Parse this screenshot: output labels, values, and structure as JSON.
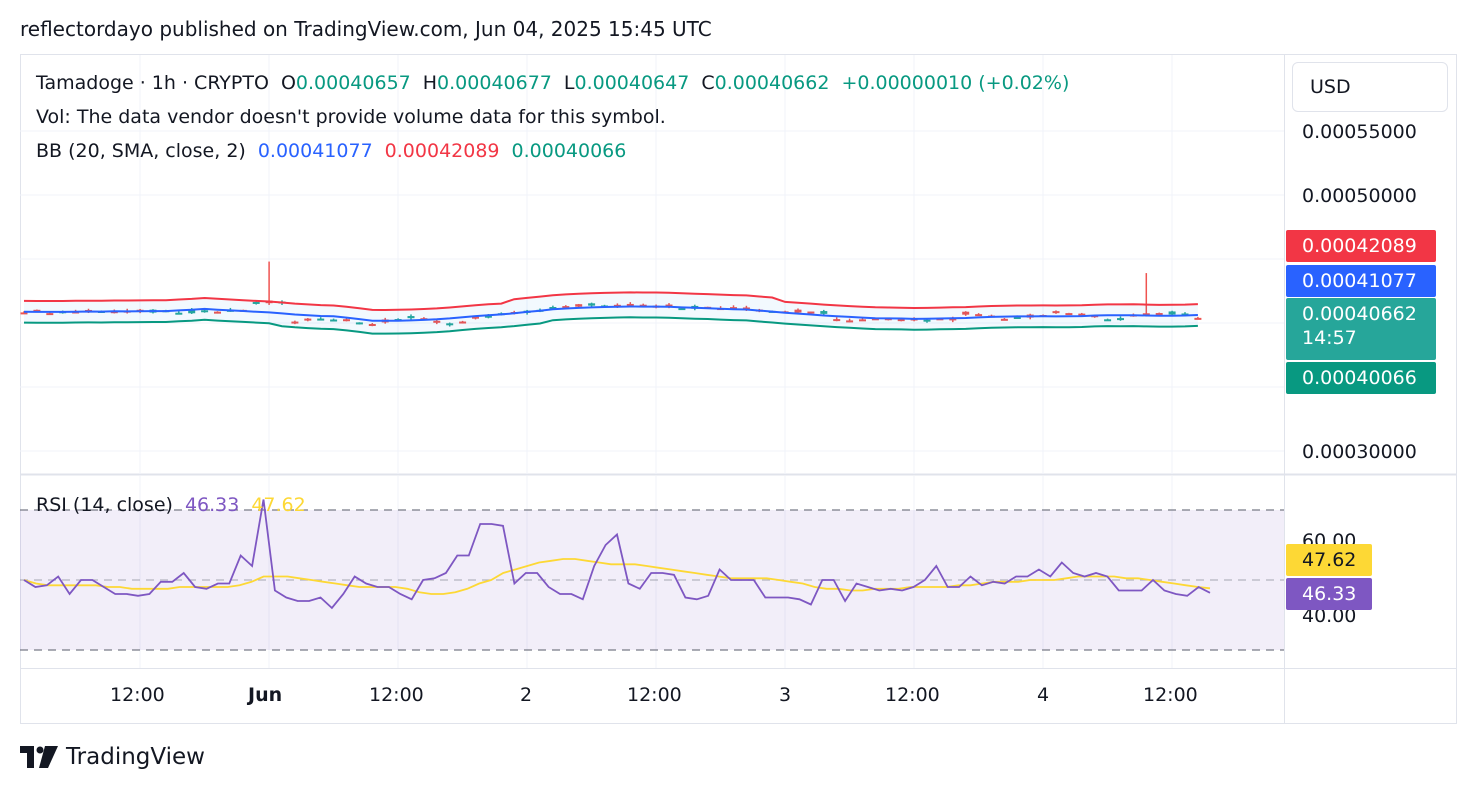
{
  "header": {
    "text": "reflectordayo published on TradingView.com, Jun 04, 2025 15:45 UTC"
  },
  "symbol": {
    "title": "Tamadoge · 1h · CRYPTO",
    "open_label": "O",
    "open": "0.00040657",
    "high_label": "H",
    "high": "0.00040677",
    "low_label": "L",
    "low": "0.00040647",
    "close_label": "C",
    "close": "0.00040662",
    "change": "+0.00000010 (+0.02%)",
    "volume_note": "Vol: The data vendor doesn't provide volume data for this symbol."
  },
  "bb": {
    "label": "BB (20, SMA, close, 2)",
    "basis": "0.00041077",
    "upper": "0.00042089",
    "lower": "0.00040066"
  },
  "rsi": {
    "label": "RSI (14, close)",
    "value": "46.33",
    "ma": "47.62"
  },
  "currency": "USD",
  "price_axis": {
    "ticks": [
      "0.00055000",
      "0.00050000",
      "0.00030000"
    ],
    "rsi_ticks": [
      "60.00",
      "40.00"
    ]
  },
  "price_tags": {
    "upper": "0.00042089",
    "basis": "0.00041077",
    "last": "0.00040662",
    "countdown": "14:57",
    "lower": "0.00040066",
    "rsi_ma": "47.62",
    "rsi": "46.33"
  },
  "time_axis": [
    "12:00",
    "Jun",
    "2",
    "12:00",
    "3",
    "12:00",
    "4",
    "12:00",
    "12:00"
  ],
  "colors": {
    "up": "#26a69a",
    "down": "#ef5350",
    "bb_upper": "#f23645",
    "bb_basis": "#2962ff",
    "bb_lower": "#089981",
    "rsi": "#7e57c2",
    "rsi_ma": "#fdd835",
    "grid": "#f0f3fa"
  },
  "footer": {
    "brand": "TradingView"
  },
  "chart_data": [
    {
      "type": "candlestick",
      "title": "Tamadoge · 1h · CRYPTO",
      "ylim": [
        0.00027,
        0.00058
      ],
      "yticks": [
        0.00055,
        0.0005,
        0.0003
      ],
      "x_labels": [
        "12:00",
        "Jun",
        "12:00",
        "2",
        "12:00",
        "3",
        "12:00",
        "4",
        "12:00"
      ],
      "bars": 92,
      "last_close": 0.00040662,
      "bollinger": {
        "basis": 0.00041077,
        "upper": 0.00042089,
        "lower": 0.00040066
      },
      "spikes": [
        {
          "bar": 19,
          "high": 0.000448
        },
        {
          "bar": 87,
          "high": 0.000439
        }
      ]
    },
    {
      "type": "line",
      "title": "RSI (14, close)",
      "ylim": [
        25,
        75
      ],
      "yticks": [
        60,
        40
      ],
      "bands": [
        30,
        50,
        70
      ],
      "series": [
        {
          "name": "RSI",
          "values": [
            50,
            48,
            48.5,
            51,
            46,
            50,
            50,
            48,
            46,
            46,
            45.5,
            46,
            49.5,
            49.5,
            52,
            48,
            47.5,
            49,
            49,
            57,
            54,
            73,
            47,
            45,
            44,
            44,
            45,
            42,
            46,
            51,
            49,
            48,
            48,
            46,
            44.5,
            50,
            50.5,
            52,
            57,
            57,
            66,
            66,
            65.5,
            49,
            52,
            52,
            48,
            46,
            46,
            44.5,
            54,
            60,
            63,
            49,
            47.5,
            52,
            52,
            51.5,
            45,
            44.5,
            45.5,
            53,
            50,
            50,
            50,
            45,
            45,
            45,
            44.5,
            43,
            50,
            50,
            44,
            49,
            48,
            47,
            47.5,
            47,
            48,
            50,
            54,
            48,
            48,
            51,
            48.5,
            49.5,
            49,
            51,
            51,
            53,
            51,
            55,
            52,
            51,
            52,
            51,
            47,
            47,
            47,
            50,
            47,
            46,
            45.5,
            48,
            46.33
          ]
        },
        {
          "name": "RSI MA",
          "values": [
            50,
            49,
            48.5,
            48.5,
            48.5,
            48.5,
            48.5,
            48,
            48,
            47.5,
            47.5,
            47.5,
            47.5,
            48,
            48,
            48,
            48,
            48,
            48.5,
            49.5,
            51,
            51,
            51,
            50.5,
            50,
            49.5,
            49,
            48.5,
            48,
            48,
            48,
            48,
            47.5,
            46.5,
            46,
            46,
            46.5,
            47.5,
            49,
            50,
            52,
            53,
            54,
            55,
            55.5,
            56,
            56,
            55.5,
            55,
            54.5,
            54.5,
            54.5,
            54,
            53.5,
            53,
            52.5,
            52,
            51.5,
            51,
            50.5,
            50.5,
            50.5,
            50.5,
            50,
            49.5,
            49,
            48,
            47.5,
            47.5,
            47,
            47,
            47.5,
            47.5,
            47.5,
            48,
            48,
            48,
            48,
            48.5,
            48.5,
            49,
            49.5,
            49.5,
            49.5,
            50,
            50,
            50,
            50.5,
            51,
            51,
            51,
            51,
            50.5,
            50.5,
            50,
            49.5,
            49,
            48.5,
            48,
            47.62
          ]
        }
      ]
    }
  ]
}
